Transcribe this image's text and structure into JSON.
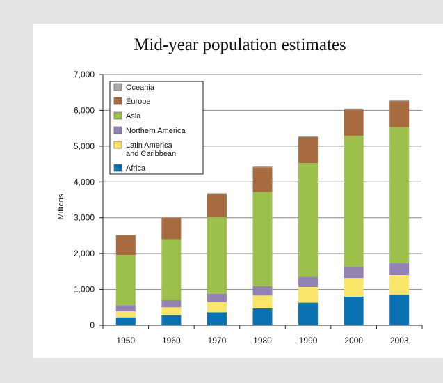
{
  "chart_data": {
    "type": "bar",
    "stacked": true,
    "title": "Mid-year population estimates",
    "ylabel": "Millions",
    "xlabel": "",
    "categories": [
      "1950",
      "1960",
      "1970",
      "1980",
      "1990",
      "2000",
      "2003"
    ],
    "ylim": [
      0,
      7000
    ],
    "yticks": [
      "0",
      "1,000",
      "2,000",
      "3,000",
      "4,000",
      "5,000",
      "6,000",
      "7,000"
    ],
    "grid": true,
    "legend_position": "top-left",
    "series": [
      {
        "name": "Africa",
        "color": "#0a72b3",
        "values": [
          220,
          280,
          360,
          470,
          630,
          800,
          860
        ]
      },
      {
        "name": "Latin America and Caribbean",
        "color": "#f9e56a",
        "values": [
          170,
          220,
          290,
          360,
          440,
          520,
          540
        ]
      },
      {
        "name": "Northern America",
        "color": "#9383b5",
        "values": [
          170,
          200,
          230,
          260,
          280,
          320,
          330
        ]
      },
      {
        "name": "Asia",
        "color": "#9dbf4b",
        "values": [
          1400,
          1700,
          2130,
          2630,
          3180,
          3650,
          3800
        ]
      },
      {
        "name": "Europe",
        "color": "#a86a3f",
        "values": [
          550,
          600,
          660,
          690,
          720,
          730,
          730
        ]
      },
      {
        "name": "Oceania",
        "color": "#a9a9a9",
        "values": [
          13,
          16,
          20,
          23,
          27,
          31,
          32
        ]
      }
    ],
    "legend_order": [
      "Oceania",
      "Europe",
      "Asia",
      "Northern America",
      "Latin America\nand Caribbean",
      "Africa"
    ]
  }
}
